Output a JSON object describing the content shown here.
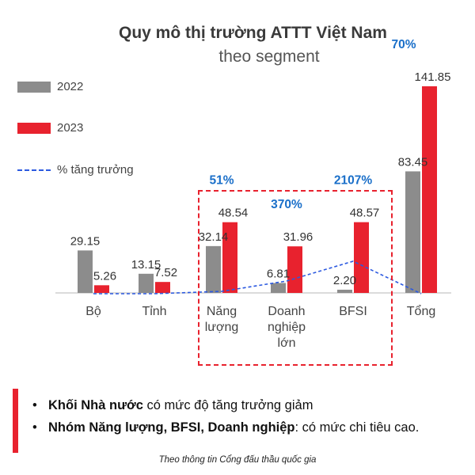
{
  "chart_data": {
    "type": "bar",
    "title": "Quy mô thị trường ATTT Việt Nam",
    "subtitle": "theo segment",
    "categories": [
      "Bộ",
      "Tỉnh",
      "Năng lượng",
      "Doanh nghiệp lớn",
      "BFSI",
      "Tổng"
    ],
    "category_lines": [
      [
        "Bộ"
      ],
      [
        "Tỉnh"
      ],
      [
        "Năng",
        "lượng"
      ],
      [
        "Doanh",
        "nghiệp",
        "lớn"
      ],
      [
        "BFSI"
      ],
      [
        "Tổng"
      ]
    ],
    "series": [
      {
        "name": "2022",
        "values": [
          29.15,
          13.15,
          32.14,
          6.81,
          2.2,
          83.45
        ],
        "color": "#8c8c8c"
      },
      {
        "name": "2023",
        "values": [
          5.26,
          7.52,
          48.54,
          31.96,
          48.57,
          141.85
        ],
        "color": "#e8222e"
      }
    ],
    "growth_series": {
      "name": "% tăng trưởng",
      "color": "#2b59e0",
      "labels": [
        "",
        "",
        "51%",
        "370%",
        "2107%",
        "70%"
      ]
    },
    "ylim": [
      0,
      160
    ],
    "legend_position": "left",
    "highlight_box": [
      "Năng lượng",
      "Doanh nghiệp lớn",
      "BFSI"
    ]
  },
  "notes": [
    {
      "bold": "Khối Nhà nước",
      "rest": " có mức độ tăng trưởng giảm"
    },
    {
      "bold": "Nhóm Năng lượng, BFSI, Doanh nghiệp",
      "rest": ": có mức chi tiêu cao."
    }
  ],
  "source": "Theo thông tin Cổng đấu thầu quốc gia"
}
